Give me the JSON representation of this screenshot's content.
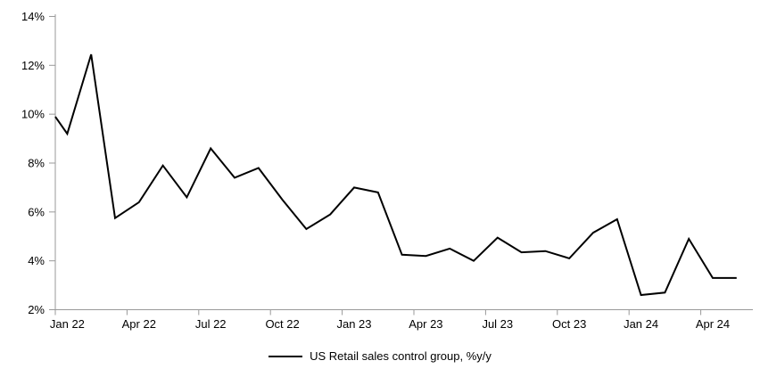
{
  "chart_data": {
    "type": "line",
    "title": "",
    "categories": [
      "Jan 22",
      "Feb 22",
      "Mar 22",
      "Apr 22",
      "May 22",
      "Jun 22",
      "Jul 22",
      "Aug 22",
      "Sep 22",
      "Oct 22",
      "Nov 22",
      "Dec 22",
      "Jan 23",
      "Feb 23",
      "Mar 23",
      "Apr 23",
      "May 23",
      "Jun 23",
      "Jul 23",
      "Aug 23",
      "Sep 23",
      "Oct 23",
      "Nov 23",
      "Dec 23",
      "Jan 24",
      "Feb 24",
      "Mar 24",
      "Apr 24",
      "May 24"
    ],
    "series": [
      {
        "name": "US Retail sales control group, %y/y",
        "values": [
          9.2,
          12.45,
          5.75,
          6.4,
          7.9,
          6.6,
          8.6,
          7.4,
          7.8,
          6.5,
          5.3,
          5.9,
          7.0,
          6.8,
          4.25,
          4.2,
          4.5,
          4.0,
          4.95,
          4.35,
          4.4,
          4.1,
          5.15,
          5.7,
          2.6,
          2.7,
          4.9,
          3.3,
          3.3
        ],
        "lead_in_value_at_left_edge": 9.9,
        "color": "#000000",
        "stroke_width": 2
      }
    ],
    "x_tick_label_indices": [
      0,
      3,
      6,
      9,
      12,
      15,
      18,
      21,
      24,
      27
    ],
    "x_tick_labels": [
      "Jan 22",
      "Apr 22",
      "Jul 22",
      "Oct 22",
      "Jan 23",
      "Apr 23",
      "Jul 23",
      "Oct 23",
      "Jan 24",
      "Apr 24"
    ],
    "y_tick_values": [
      2,
      4,
      6,
      8,
      10,
      12,
      14
    ],
    "y_tick_labels": [
      "2%",
      "4%",
      "6%",
      "8%",
      "10%",
      "12%",
      "14%"
    ],
    "ylim": [
      2,
      14
    ],
    "xlabel": "",
    "ylabel": "",
    "grid": false,
    "legend_position": "bottom-center",
    "axis_color": "#999999",
    "text_color": "#000000",
    "background_color": "#ffffff"
  },
  "legend": {
    "label": "US Retail sales control group, %y/y"
  }
}
